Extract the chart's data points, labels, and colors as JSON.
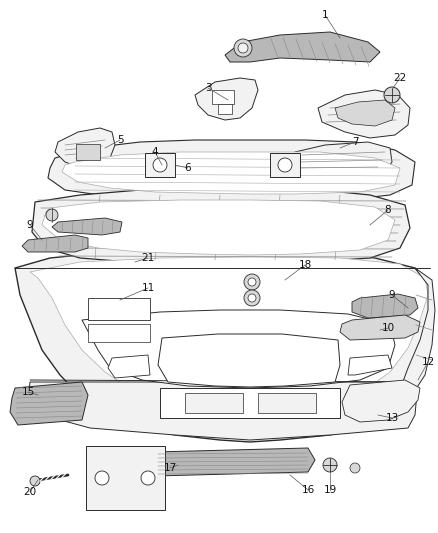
{
  "bg_color": "#ffffff",
  "line_color": "#2a2a2a",
  "label_color": "#111111",
  "fig_width": 4.38,
  "fig_height": 5.33,
  "dpi": 100,
  "parts_fill": "#e8e8e8",
  "parts_stroke": "#2a2a2a",
  "dark_fill": "#b0b0b0",
  "medium_fill": "#d0d0d0"
}
